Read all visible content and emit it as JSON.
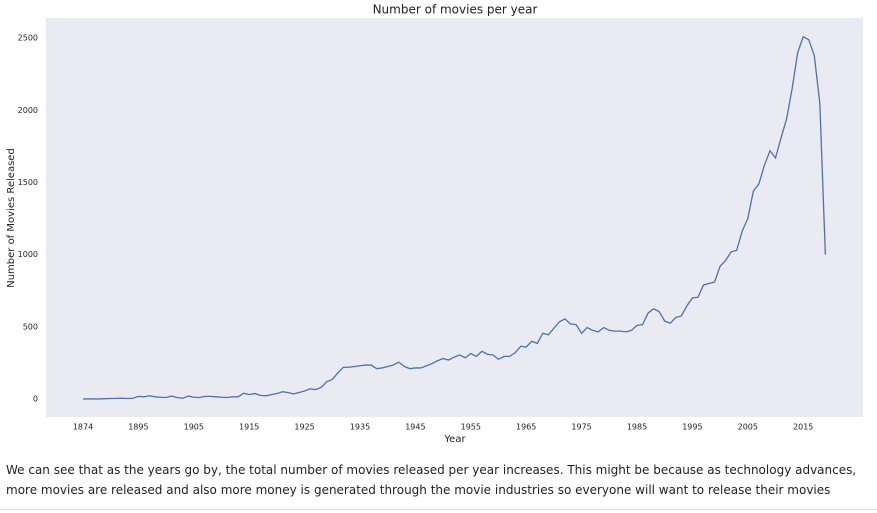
{
  "chart_data": {
    "type": "line",
    "title": "Number of movies per year",
    "x_label": "Year",
    "y_label": "Number of Movies Released",
    "categories": [
      "1874",
      null,
      null,
      null,
      null,
      null,
      null,
      null,
      null,
      null,
      "1895",
      null,
      null,
      null,
      null,
      null,
      null,
      null,
      null,
      null,
      "1905",
      null,
      null,
      null,
      null,
      null,
      null,
      null,
      null,
      null,
      "1915",
      null,
      null,
      null,
      null,
      null,
      null,
      null,
      null,
      null,
      "1925",
      null,
      null,
      null,
      null,
      null,
      null,
      null,
      null,
      null,
      "1935",
      null,
      null,
      null,
      null,
      null,
      null,
      null,
      null,
      null,
      "1945",
      null,
      null,
      null,
      null,
      null,
      null,
      null,
      null,
      null,
      "1955",
      null,
      null,
      null,
      null,
      null,
      null,
      null,
      null,
      null,
      "1965",
      null,
      null,
      null,
      null,
      null,
      null,
      null,
      null,
      null,
      "1975",
      null,
      null,
      null,
      null,
      null,
      null,
      null,
      null,
      null,
      "1985",
      null,
      null,
      null,
      null,
      null,
      null,
      null,
      null,
      null,
      "1995",
      null,
      null,
      null,
      null,
      null,
      null,
      null,
      null,
      null,
      "2005",
      null,
      null,
      null,
      null,
      null,
      null,
      null,
      null,
      null,
      "2015",
      null,
      null,
      null,
      null
    ],
    "values": [
      0,
      0,
      0,
      0,
      2,
      3,
      4,
      5,
      3,
      5,
      18,
      15,
      22,
      15,
      12,
      10,
      20,
      10,
      5,
      20,
      12,
      10,
      18,
      18,
      15,
      12,
      10,
      15,
      15,
      40,
      30,
      38,
      25,
      22,
      30,
      38,
      50,
      45,
      35,
      45,
      55,
      70,
      65,
      80,
      120,
      135,
      180,
      220,
      220,
      225,
      230,
      235,
      235,
      210,
      215,
      225,
      235,
      255,
      225,
      210,
      215,
      215,
      230,
      245,
      265,
      280,
      270,
      290,
      305,
      285,
      315,
      295,
      330,
      310,
      305,
      275,
      295,
      295,
      320,
      365,
      360,
      400,
      385,
      455,
      445,
      490,
      535,
      555,
      520,
      515,
      455,
      495,
      475,
      465,
      495,
      475,
      470,
      470,
      465,
      475,
      510,
      515,
      595,
      625,
      605,
      540,
      525,
      565,
      575,
      645,
      700,
      705,
      790,
      800,
      810,
      920,
      960,
      1020,
      1030,
      1165,
      1250,
      1440,
      1490,
      1620,
      1720,
      1670,
      1810,
      1940,
      2150,
      2400,
      2510,
      2490,
      2380,
      2050,
      1000
    ],
    "color": "#4c72b0",
    "background": "#eaeaf2",
    "grid": false,
    "ylim": [
      -125,
      2640
    ],
    "yticks": [
      0,
      500,
      1000,
      1500,
      2000,
      2500
    ]
  },
  "text": "We can see that as the years go by, the total number of movies released per year increases. This might be because as technology advances, more movies are released and also more money is generated through the movie industries so everyone will want to release their movies"
}
